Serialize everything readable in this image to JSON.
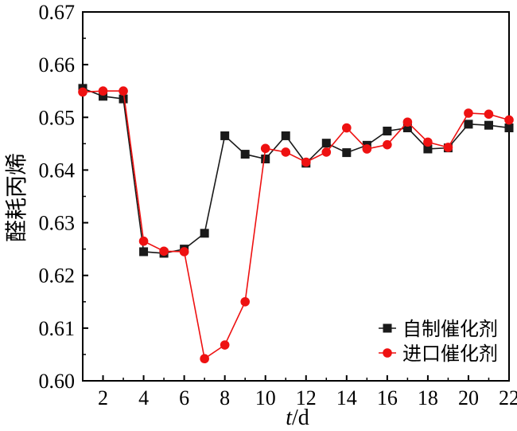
{
  "chart_data": {
    "type": "line",
    "title": "",
    "xlabel_italic": "t",
    "xlabel_unit": "/d",
    "ylabel": "醛耗丙烯",
    "xlim": [
      1,
      22
    ],
    "ylim": [
      0.6,
      0.67
    ],
    "xticks": [
      2,
      4,
      6,
      8,
      10,
      12,
      14,
      16,
      18,
      20,
      22
    ],
    "xtick_labels": [
      "2",
      "4",
      "6",
      "8",
      "10",
      "12",
      "14",
      "16",
      "18",
      "20",
      "22"
    ],
    "yticks": [
      0.6,
      0.61,
      0.62,
      0.63,
      0.64,
      0.65,
      0.66,
      0.67
    ],
    "ytick_labels": [
      "0.60",
      "0.61",
      "0.62",
      "0.63",
      "0.64",
      "0.65",
      "0.66",
      "0.67"
    ],
    "grid": false,
    "legend_position": "bottom-right",
    "x": [
      1,
      2,
      3,
      4,
      5,
      6,
      7,
      8,
      9,
      10,
      11,
      12,
      13,
      14,
      15,
      16,
      17,
      18,
      19,
      20,
      21,
      22
    ],
    "series": [
      {
        "name": "自制催化剂",
        "color": "#1a1a1a",
        "marker": "square",
        "values": [
          0.6555,
          0.654,
          0.6535,
          0.6245,
          0.6242,
          0.625,
          0.628,
          0.6465,
          0.643,
          0.6421,
          0.6465,
          0.6413,
          0.6451,
          0.6433,
          0.6447,
          0.6474,
          0.648,
          0.644,
          0.6442,
          0.6487,
          0.6485,
          0.648
        ]
      },
      {
        "name": "进口催化剂",
        "color": "#ee1111",
        "marker": "circle",
        "values": [
          0.6548,
          0.655,
          0.655,
          0.6265,
          0.6246,
          0.6245,
          0.6042,
          0.6068,
          0.615,
          0.6441,
          0.6434,
          0.6415,
          0.6434,
          0.648,
          0.644,
          0.6448,
          0.6491,
          0.6453,
          0.6443,
          0.6508,
          0.6506,
          0.6495
        ]
      }
    ]
  }
}
